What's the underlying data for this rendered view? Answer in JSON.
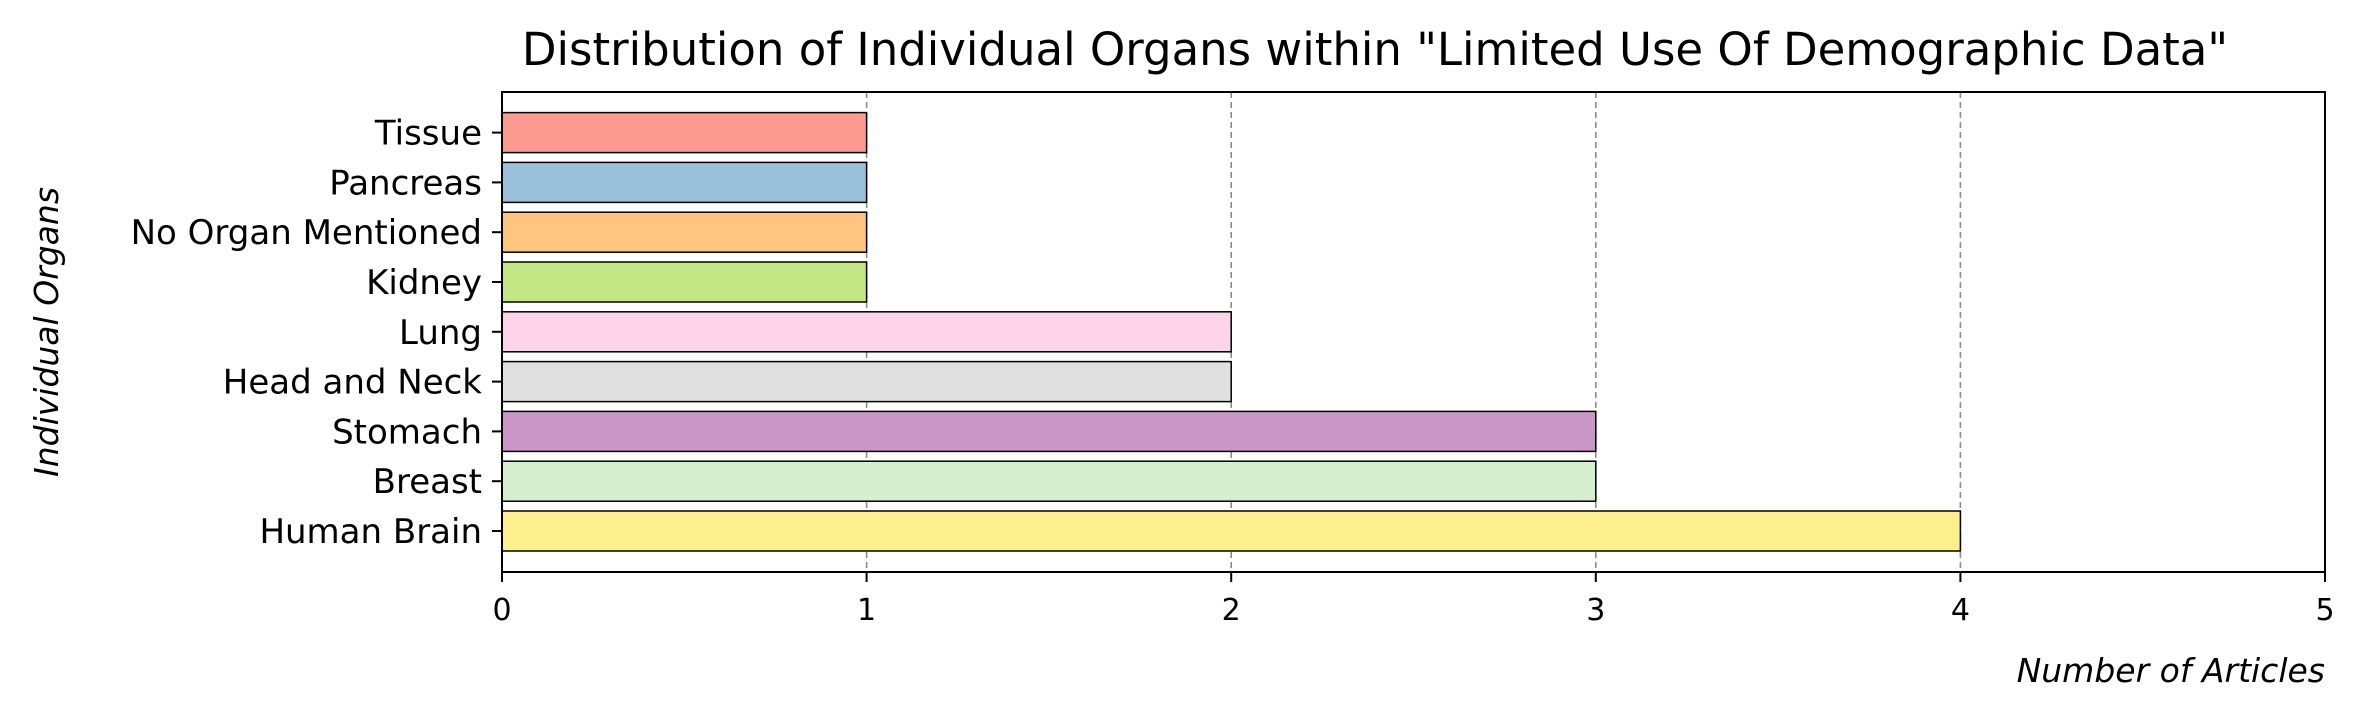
{
  "chart_data": {
    "type": "bar",
    "orientation": "horizontal",
    "title": "Distribution of Individual Organs within \"Limited Use Of Demographic Data\"",
    "xlabel": "Number of Articles",
    "ylabel": "Individual Organs",
    "xlim": [
      0,
      5
    ],
    "xticks": [
      "0",
      "1",
      "2",
      "3",
      "4",
      "5"
    ],
    "grid": "x-dashed",
    "categories": [
      "Human Brain",
      "Breast",
      "Stomach",
      "Head and Neck",
      "Lung",
      "Kidney",
      "No Organ Mentioned",
      "Pancreas",
      "Tissue"
    ],
    "values": [
      4,
      3,
      3,
      2,
      2,
      1,
      1,
      1,
      1
    ],
    "colors": [
      "#fdf08e",
      "#d7efd1",
      "#cb96c8",
      "#e0e0e0",
      "#fed5e8",
      "#c3e785",
      "#fec581",
      "#9bc0da",
      "#fe9b91"
    ]
  }
}
